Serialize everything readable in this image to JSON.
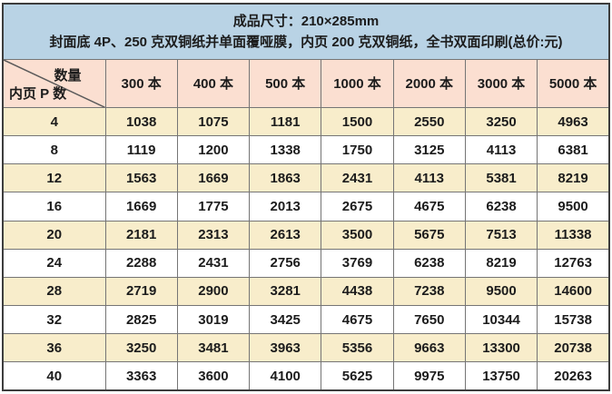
{
  "title": {
    "line1": "成品尺寸：210×285mm",
    "line2": "封面底 4P、250 克双铜纸并单面覆哑膜，内页 200 克双铜纸，全书双面印刷(总价:元)"
  },
  "table": {
    "corner": {
      "top_right_label": "数量",
      "bottom_left_label": "内页 P 数"
    },
    "quantity_headers": [
      "300 本",
      "400 本",
      "500 本",
      "1000 本",
      "2000 本",
      "3000 本",
      "5000 本"
    ],
    "rows": [
      {
        "pages": "4",
        "prices": [
          "1038",
          "1075",
          "1181",
          "1500",
          "2550",
          "3250",
          "4963"
        ]
      },
      {
        "pages": "8",
        "prices": [
          "1119",
          "1200",
          "1338",
          "1750",
          "3125",
          "4113",
          "6381"
        ]
      },
      {
        "pages": "12",
        "prices": [
          "1563",
          "1669",
          "1863",
          "2431",
          "4113",
          "5381",
          "8219"
        ]
      },
      {
        "pages": "16",
        "prices": [
          "1669",
          "1775",
          "2013",
          "2675",
          "4675",
          "6238",
          "9500"
        ]
      },
      {
        "pages": "20",
        "prices": [
          "2181",
          "2313",
          "2613",
          "3500",
          "5675",
          "7513",
          "11338"
        ]
      },
      {
        "pages": "24",
        "prices": [
          "2288",
          "2431",
          "2756",
          "3769",
          "6238",
          "8219",
          "12763"
        ]
      },
      {
        "pages": "28",
        "prices": [
          "2719",
          "2900",
          "3281",
          "4438",
          "7238",
          "9500",
          "14600"
        ]
      },
      {
        "pages": "32",
        "prices": [
          "2825",
          "3019",
          "3425",
          "4675",
          "7650",
          "10344",
          "15738"
        ]
      },
      {
        "pages": "36",
        "prices": [
          "3250",
          "3481",
          "3963",
          "5356",
          "9663",
          "13300",
          "20738"
        ]
      },
      {
        "pages": "40",
        "prices": [
          "3363",
          "3600",
          "4100",
          "5625",
          "9975",
          "13750",
          "20263"
        ]
      }
    ]
  },
  "colors": {
    "title_band_blue": "#b9d3e5",
    "header_row_pink": "#fbdfd1",
    "row_cream": "#f8edcb",
    "row_white": "#ffffff",
    "inner_border": "#757575",
    "outer_border": "#3d3d3d",
    "text": "#1c1c1c"
  },
  "chart_data": {
    "type": "table",
    "title": "成品尺寸：210×285mm",
    "subtitle": "封面底 4P、250 克双铜纸并单面覆哑膜，内页 200 克双铜纸，全书双面印刷(总价:元)",
    "row_axis_label": "内页 P 数",
    "column_axis_label": "数量",
    "categories": [
      "300 本",
      "400 本",
      "500 本",
      "1000 本",
      "2000 本",
      "3000 本",
      "5000 本"
    ],
    "series": [
      {
        "name": "4",
        "values": [
          1038,
          1075,
          1181,
          1500,
          2550,
          3250,
          4963
        ]
      },
      {
        "name": "8",
        "values": [
          1119,
          1200,
          1338,
          1750,
          3125,
          4113,
          6381
        ]
      },
      {
        "name": "12",
        "values": [
          1563,
          1669,
          1863,
          2431,
          4113,
          5381,
          8219
        ]
      },
      {
        "name": "16",
        "values": [
          1669,
          1775,
          2013,
          2675,
          4675,
          6238,
          9500
        ]
      },
      {
        "name": "20",
        "values": [
          2181,
          2313,
          2613,
          3500,
          5675,
          7513,
          11338
        ]
      },
      {
        "name": "24",
        "values": [
          2288,
          2431,
          2756,
          3769,
          6238,
          8219,
          12763
        ]
      },
      {
        "name": "28",
        "values": [
          2719,
          2900,
          3281,
          4438,
          7238,
          9500,
          14600
        ]
      },
      {
        "name": "32",
        "values": [
          2825,
          3019,
          3425,
          4675,
          7650,
          10344,
          15738
        ]
      },
      {
        "name": "36",
        "values": [
          3250,
          3481,
          3963,
          5356,
          9663,
          13300,
          20738
        ]
      },
      {
        "name": "40",
        "values": [
          3363,
          3600,
          4100,
          5625,
          9975,
          13750,
          20263
        ]
      }
    ]
  }
}
